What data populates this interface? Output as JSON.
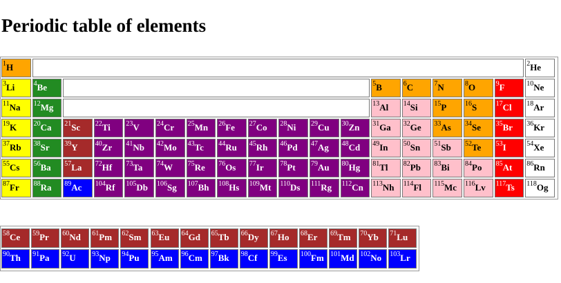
{
  "page": {
    "title": "Periodic table of elements"
  },
  "colors": {
    "alkali": "#ffff00",
    "alkaline": "#228b22",
    "transition": "#800080",
    "post_transition": "#ffc0cb",
    "nonmetal": "#ffa500",
    "halogen": "#ff0000",
    "noble": "#ffffff",
    "lanthanide": "#a52a2a",
    "actinide": "#0000ff"
  },
  "main_rows": [
    [
      {
        "n": "1",
        "s": "H",
        "c": "nonmetal"
      },
      {
        "blank": 16
      },
      {
        "n": "2",
        "s": "He",
        "c": "noble"
      }
    ],
    [
      {
        "n": "3",
        "s": "Li",
        "c": "alkali"
      },
      {
        "n": "4",
        "s": "Be",
        "c": "alkaline"
      },
      {
        "blank": 10
      },
      {
        "n": "5",
        "s": "B",
        "c": "nonmetal"
      },
      {
        "n": "6",
        "s": "C",
        "c": "nonmetal"
      },
      {
        "n": "7",
        "s": "N",
        "c": "nonmetal"
      },
      {
        "n": "8",
        "s": "O",
        "c": "nonmetal"
      },
      {
        "n": "9",
        "s": "F",
        "c": "halogen"
      },
      {
        "n": "10",
        "s": "Ne",
        "c": "noble"
      }
    ],
    [
      {
        "n": "11",
        "s": "Na",
        "c": "alkali"
      },
      {
        "n": "12",
        "s": "Mg",
        "c": "alkaline"
      },
      {
        "blank": 10
      },
      {
        "n": "13",
        "s": "Al",
        "c": "post_transition"
      },
      {
        "n": "14",
        "s": "Si",
        "c": "post_transition"
      },
      {
        "n": "15",
        "s": "P",
        "c": "nonmetal"
      },
      {
        "n": "16",
        "s": "S",
        "c": "nonmetal"
      },
      {
        "n": "17",
        "s": "Cl",
        "c": "halogen"
      },
      {
        "n": "18",
        "s": "Ar",
        "c": "noble"
      }
    ],
    [
      {
        "n": "19",
        "s": "K",
        "c": "alkali"
      },
      {
        "n": "20",
        "s": "Ca",
        "c": "alkaline"
      },
      {
        "n": "21",
        "s": "Sc",
        "c": "lanthanide"
      },
      {
        "n": "22",
        "s": "Ti",
        "c": "transition"
      },
      {
        "n": "23",
        "s": "V",
        "c": "transition"
      },
      {
        "n": "24",
        "s": "Cr",
        "c": "transition"
      },
      {
        "n": "25",
        "s": "Mn",
        "c": "transition"
      },
      {
        "n": "26",
        "s": "Fe",
        "c": "transition"
      },
      {
        "n": "27",
        "s": "Co",
        "c": "transition"
      },
      {
        "n": "28",
        "s": "Ni",
        "c": "transition"
      },
      {
        "n": "29",
        "s": "Cu",
        "c": "transition"
      },
      {
        "n": "30",
        "s": "Zn",
        "c": "transition"
      },
      {
        "n": "31",
        "s": "Ga",
        "c": "post_transition"
      },
      {
        "n": "32",
        "s": "Ge",
        "c": "post_transition"
      },
      {
        "n": "33",
        "s": "As",
        "c": "nonmetal"
      },
      {
        "n": "34",
        "s": "Se",
        "c": "nonmetal"
      },
      {
        "n": "35",
        "s": "Br",
        "c": "halogen"
      },
      {
        "n": "36",
        "s": "Kr",
        "c": "noble"
      }
    ],
    [
      {
        "n": "37",
        "s": "Rb",
        "c": "alkali"
      },
      {
        "n": "38",
        "s": "Sr",
        "c": "alkaline"
      },
      {
        "n": "39",
        "s": "Y",
        "c": "lanthanide"
      },
      {
        "n": "40",
        "s": "Zr",
        "c": "transition"
      },
      {
        "n": "41",
        "s": "Nb",
        "c": "transition"
      },
      {
        "n": "42",
        "s": "Mo",
        "c": "transition"
      },
      {
        "n": "43",
        "s": "Tc",
        "c": "transition"
      },
      {
        "n": "44",
        "s": "Ru",
        "c": "transition"
      },
      {
        "n": "45",
        "s": "Rh",
        "c": "transition"
      },
      {
        "n": "46",
        "s": "Pd",
        "c": "transition"
      },
      {
        "n": "47",
        "s": "Ag",
        "c": "transition"
      },
      {
        "n": "48",
        "s": "Cd",
        "c": "transition"
      },
      {
        "n": "49",
        "s": "In",
        "c": "post_transition"
      },
      {
        "n": "50",
        "s": "Sn",
        "c": "post_transition"
      },
      {
        "n": "51",
        "s": "Sb",
        "c": "post_transition"
      },
      {
        "n": "52",
        "s": "Te",
        "c": "nonmetal"
      },
      {
        "n": "53",
        "s": "I",
        "c": "halogen"
      },
      {
        "n": "54",
        "s": "Xe",
        "c": "noble"
      }
    ],
    [
      {
        "n": "55",
        "s": "Cs",
        "c": "alkali"
      },
      {
        "n": "56",
        "s": "Ba",
        "c": "alkaline"
      },
      {
        "n": "57",
        "s": "La",
        "c": "lanthanide"
      },
      {
        "n": "72",
        "s": "Hf",
        "c": "transition"
      },
      {
        "n": "73",
        "s": "Ta",
        "c": "transition"
      },
      {
        "n": "74",
        "s": "W",
        "c": "transition"
      },
      {
        "n": "75",
        "s": "Re",
        "c": "transition"
      },
      {
        "n": "76",
        "s": "Os",
        "c": "transition"
      },
      {
        "n": "77",
        "s": "Ir",
        "c": "transition"
      },
      {
        "n": "78",
        "s": "Pt",
        "c": "transition"
      },
      {
        "n": "79",
        "s": "Au",
        "c": "transition"
      },
      {
        "n": "80",
        "s": "Hg",
        "c": "transition"
      },
      {
        "n": "81",
        "s": "Tl",
        "c": "post_transition"
      },
      {
        "n": "82",
        "s": "Pb",
        "c": "post_transition"
      },
      {
        "n": "83",
        "s": "Bi",
        "c": "post_transition"
      },
      {
        "n": "84",
        "s": "Po",
        "c": "post_transition"
      },
      {
        "n": "85",
        "s": "At",
        "c": "halogen"
      },
      {
        "n": "86",
        "s": "Rn",
        "c": "noble"
      }
    ],
    [
      {
        "n": "87",
        "s": "Fr",
        "c": "alkali"
      },
      {
        "n": "88",
        "s": "Ra",
        "c": "alkaline"
      },
      {
        "n": "89",
        "s": "Ac",
        "c": "actinide"
      },
      {
        "n": "104",
        "s": "Rf",
        "c": "transition"
      },
      {
        "n": "105",
        "s": "Db",
        "c": "transition"
      },
      {
        "n": "106",
        "s": "Sg",
        "c": "transition"
      },
      {
        "n": "107",
        "s": "Bh",
        "c": "transition"
      },
      {
        "n": "108",
        "s": "Hs",
        "c": "transition"
      },
      {
        "n": "109",
        "s": "Mt",
        "c": "transition"
      },
      {
        "n": "110",
        "s": "Ds",
        "c": "transition"
      },
      {
        "n": "111",
        "s": "Rg",
        "c": "transition"
      },
      {
        "n": "112",
        "s": "Cn",
        "c": "transition"
      },
      {
        "n": "113",
        "s": "Nh",
        "c": "post_transition"
      },
      {
        "n": "114",
        "s": "Fl",
        "c": "post_transition"
      },
      {
        "n": "115",
        "s": "Mc",
        "c": "post_transition"
      },
      {
        "n": "116",
        "s": "Lv",
        "c": "post_transition"
      },
      {
        "n": "117",
        "s": "Ts",
        "c": "halogen"
      },
      {
        "n": "118",
        "s": "Og",
        "c": "noble"
      }
    ]
  ],
  "series_rows": [
    [
      {
        "n": "58",
        "s": "Ce",
        "c": "lanthanide"
      },
      {
        "n": "59",
        "s": "Pr",
        "c": "lanthanide"
      },
      {
        "n": "60",
        "s": "Nd",
        "c": "lanthanide"
      },
      {
        "n": "61",
        "s": "Pm",
        "c": "lanthanide"
      },
      {
        "n": "62",
        "s": "Sm",
        "c": "lanthanide"
      },
      {
        "n": "63",
        "s": "Eu",
        "c": "lanthanide"
      },
      {
        "n": "64",
        "s": "Gd",
        "c": "lanthanide"
      },
      {
        "n": "65",
        "s": "Tb",
        "c": "lanthanide"
      },
      {
        "n": "66",
        "s": "Dy",
        "c": "lanthanide"
      },
      {
        "n": "67",
        "s": "Ho",
        "c": "lanthanide"
      },
      {
        "n": "68",
        "s": "Er",
        "c": "lanthanide"
      },
      {
        "n": "69",
        "s": "Tm",
        "c": "lanthanide"
      },
      {
        "n": "70",
        "s": "Yb",
        "c": "lanthanide"
      },
      {
        "n": "71",
        "s": "Lu",
        "c": "lanthanide"
      }
    ],
    [
      {
        "n": "90",
        "s": "Th",
        "c": "actinide"
      },
      {
        "n": "91",
        "s": "Pa",
        "c": "actinide"
      },
      {
        "n": "92",
        "s": "U",
        "c": "actinide"
      },
      {
        "n": "93",
        "s": "Np",
        "c": "actinide"
      },
      {
        "n": "94",
        "s": "Pu",
        "c": "actinide"
      },
      {
        "n": "95",
        "s": "Am",
        "c": "actinide"
      },
      {
        "n": "96",
        "s": "Cm",
        "c": "actinide"
      },
      {
        "n": "97",
        "s": "Bk",
        "c": "actinide"
      },
      {
        "n": "98",
        "s": "Cf",
        "c": "actinide"
      },
      {
        "n": "99",
        "s": "Es",
        "c": "actinide"
      },
      {
        "n": "100",
        "s": "Fm",
        "c": "actinide"
      },
      {
        "n": "101",
        "s": "Md",
        "c": "actinide"
      },
      {
        "n": "102",
        "s": "No",
        "c": "actinide"
      },
      {
        "n": "103",
        "s": "Lr",
        "c": "actinide"
      }
    ]
  ]
}
